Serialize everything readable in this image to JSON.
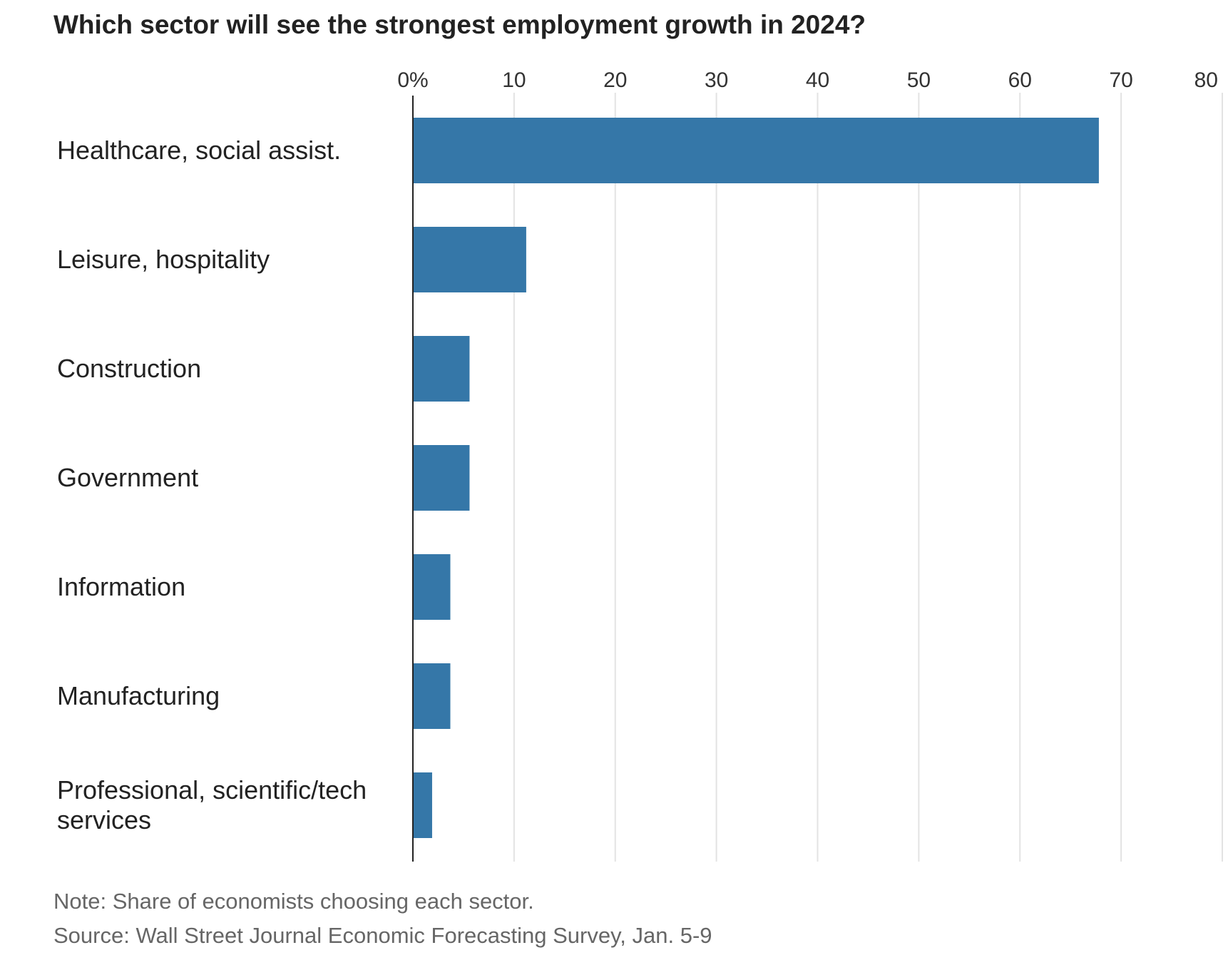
{
  "chart_data": {
    "type": "bar",
    "orientation": "horizontal",
    "title": "Which sector will see the strongest employment growth in 2024?",
    "categories": [
      "Healthcare, social assist.",
      "Leisure, hospitality",
      "Construction",
      "Government",
      "Information",
      "Manufacturing",
      "Professional, scientific/tech services"
    ],
    "values": [
      67.8,
      11.2,
      5.6,
      5.6,
      3.7,
      3.7,
      1.9
    ],
    "xlim": [
      0,
      80
    ],
    "xticks": [
      0,
      10,
      20,
      30,
      40,
      50,
      60,
      70,
      80
    ],
    "xtick_labels": [
      "0%",
      "10",
      "20",
      "30",
      "40",
      "50",
      "60",
      "70",
      "80"
    ],
    "xlabel": "",
    "ylabel": "",
    "grid": true,
    "axis_position": "top",
    "bar_color": "#3577a8",
    "grid_color": "#e3e3e3",
    "axis_color": "#222222"
  },
  "notes": {
    "note": "Note: Share of economists choosing each sector.",
    "source": "Source: Wall Street Journal Economic Forecasting Survey, Jan. 5-9"
  }
}
